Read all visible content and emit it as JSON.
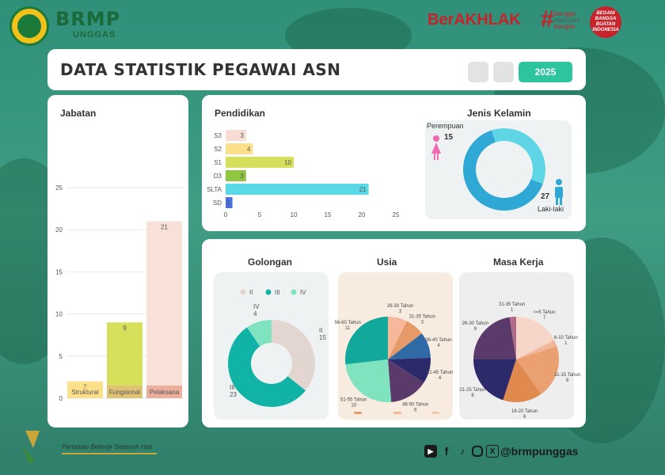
{
  "header": {
    "brand_title": "BRMP",
    "brand_sub": "UNGGAS",
    "berakhlak": "BerAKHLAK",
    "bangga_lines": [
      "bangga",
      "melayani",
      "bangsa"
    ],
    "bela_text": "BEGANI BANGGA BUATAN INDONESIA"
  },
  "title_card": {
    "title": "DATA STATISTIK PEGAWAI ASN",
    "year": "2025"
  },
  "jabatan": {
    "title": "Jabatan",
    "colors": [
      "#fde08a",
      "#d6e05a",
      "#f8e1d8"
    ],
    "base_colors": [
      "#fde08a",
      "#e9a98a",
      "#e1866a"
    ]
  },
  "pendidikan": {
    "title": "Pendidikan",
    "colors": [
      "#f6dcd4",
      "#fde08a",
      "#d6e05a",
      "#8fc63f",
      "#5ad8e6",
      "#4a6de8"
    ]
  },
  "jenis_kelamin": {
    "title": "Jenis Kelamin",
    "perempuan_label": "Perempuan",
    "perempuan_value": "15",
    "laki_label": "Laki-laki",
    "laki_value": "27",
    "colors": [
      "#5fd6e6",
      "#2fa8d6"
    ]
  },
  "golongan": {
    "title": "Golongan",
    "colors": [
      "#e3d6d0",
      "#10b3a6",
      "#7fe3c0"
    ],
    "labels": [
      {
        "name": "II",
        "value": "15"
      },
      {
        "name": "III",
        "value": "23"
      },
      {
        "name": "IV",
        "value": "4"
      }
    ]
  },
  "usia": {
    "title": "Usia",
    "colors": [
      "#f6b79a",
      "#e69a68",
      "#2f6aa6",
      "#2c2a6a",
      "#5a3a6a",
      "#7fe3c0",
      "#12a89c"
    ]
  },
  "masa_kerja": {
    "title": "Masa Kerja",
    "colors": [
      "#f6d6c8",
      "#f2b79a",
      "#eaa070",
      "#e08a50",
      "#2c2a6a",
      "#5a3a6a",
      "#b06a8a"
    ]
  },
  "footer": {
    "slogan": "Pertanian Bekerja Sepenuh Hati",
    "handle": "@brmpunggas"
  },
  "chart_data": [
    {
      "type": "bar",
      "title": "Jabatan",
      "categories": [
        "Struktural",
        "Fungsional",
        "Pelaksana"
      ],
      "values": [
        2,
        9,
        21
      ],
      "ylim": [
        0,
        25
      ],
      "yticks": [
        0,
        5,
        10,
        15,
        20,
        25
      ],
      "grid": true
    },
    {
      "type": "bar",
      "orientation": "horizontal",
      "title": "Pendidikan",
      "categories": [
        "S3",
        "S2",
        "S1",
        "D3",
        "SLTA",
        "SD"
      ],
      "values": [
        3,
        4,
        10,
        3,
        21,
        1
      ],
      "xlim": [
        0,
        25
      ],
      "xticks": [
        0,
        5,
        10,
        15,
        20,
        25
      ]
    },
    {
      "type": "pie",
      "donut": true,
      "title": "Jenis Kelamin",
      "labels": [
        "Perempuan",
        "Laki-laki"
      ],
      "values": [
        15,
        27
      ]
    },
    {
      "type": "pie",
      "donut": true,
      "title": "Golongan",
      "labels": [
        "II",
        "III",
        "IV"
      ],
      "values": [
        15,
        23,
        4
      ],
      "legend": "top"
    },
    {
      "type": "pie",
      "title": "Usia",
      "labels": [
        "26-30 Tahun",
        "31-35 Tahun",
        "36-40 Tahun",
        "41-45 Tahun",
        "46-50 Tahun",
        "51-55 Tahun",
        "56-60 Tahun"
      ],
      "values": [
        3,
        3,
        4,
        4,
        6,
        10,
        11
      ]
    },
    {
      "type": "pie",
      "title": "Masa Kerja",
      "labels": [
        "<=5 Tahun",
        "6-10 Tahun",
        "11-15 Tahun",
        "16-20 Tahun",
        "21-25 Tahun",
        "26-30 Tahun",
        "31-35 Tahun"
      ],
      "values": [
        7,
        1,
        8,
        6,
        8,
        9,
        1
      ]
    }
  ]
}
